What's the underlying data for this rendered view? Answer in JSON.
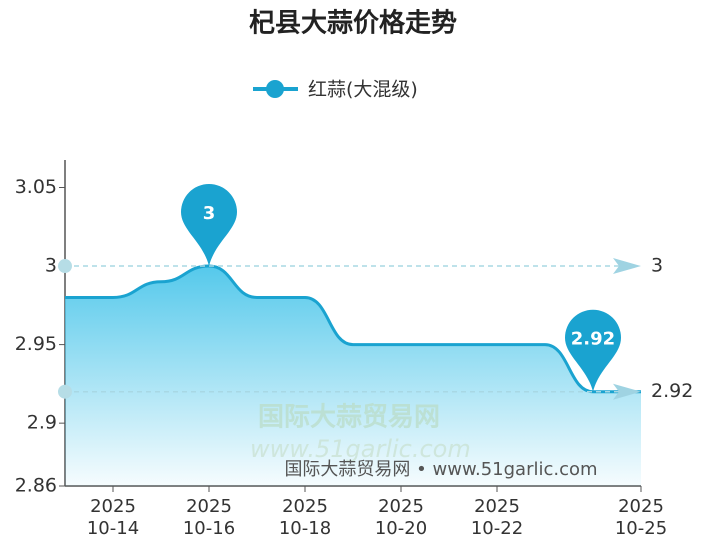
{
  "chart_data": {
    "type": "line",
    "title": "杞县大蒜价格走势",
    "categories": [
      null,
      "2025\n10-14",
      null,
      "2025\n10-16",
      null,
      "2025\n10-18",
      null,
      "2025\n10-20",
      null,
      "2025\n10-22",
      null,
      null,
      "2025\n10-25"
    ],
    "series": [
      {
        "name": "红蒜(大混级)",
        "color": "#1aa3d0",
        "values": [
          2.98,
          2.98,
          2.99,
          3,
          2.98,
          2.98,
          2.95,
          2.95,
          2.95,
          2.95,
          2.95,
          2.92,
          2.92
        ]
      }
    ],
    "ylim": [
      2.86,
      3.0675
    ],
    "yticks": [
      {
        "value": 2.86,
        "label": "2.86"
      },
      {
        "value": 2.9,
        "label": "2.9"
      },
      2.95,
      3,
      3.05
    ],
    "mark_points": [
      {
        "index": 3,
        "value": 3
      },
      {
        "index": 11,
        "value": 2.92
      }
    ],
    "mark_lines": [
      3,
      2.92
    ],
    "watermark": [
      "国际大蒜贸易网",
      "www.51garlic.com"
    ],
    "footer": "国际大蒜贸易网 • www.51garlic.com"
  }
}
